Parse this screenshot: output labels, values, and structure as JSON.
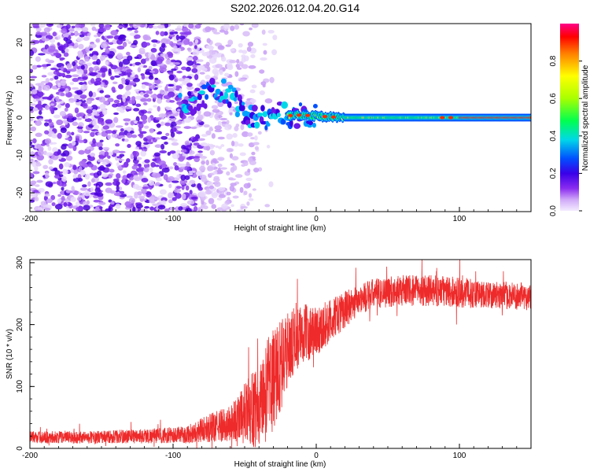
{
  "title": "S202.2026.012.04.20.G14",
  "chart_data": [
    {
      "type": "heatmap",
      "name": "spectrogram",
      "xlabel": "Height of straight line (km)",
      "ylabel": "Frequency (Hz)",
      "xlim": [
        -200,
        150
      ],
      "ylim": [
        -25,
        25
      ],
      "xticks": [
        "-200",
        "-100",
        "0",
        "100"
      ],
      "xtick_values": [
        -200,
        -100,
        0,
        100
      ],
      "yticks": [
        "20",
        "10",
        "0",
        "-10",
        "-20"
      ],
      "ytick_values": [
        20,
        10,
        0,
        -10,
        -20
      ],
      "colorbar": {
        "label": "Normalized spectral amplitude",
        "range": [
          0,
          1
        ],
        "ticks": [
          "0.0",
          "0.2",
          "0.4",
          "0.6",
          "0.8"
        ],
        "tick_values": [
          0.0,
          0.2,
          0.4,
          0.6,
          0.8
        ],
        "colors": [
          "#ffffff",
          "#d8b8f8",
          "#9030f0",
          "#4000e0",
          "#0050ff",
          "#00e0e0",
          "#00ff40",
          "#a0ff00",
          "#ffff00",
          "#ff8000",
          "#ff0000",
          "#ff0080"
        ]
      },
      "features": {
        "noise_region_km": [
          -200,
          -80
        ],
        "signal_track": [
          {
            "x": -95,
            "f": 3
          },
          {
            "x": -80,
            "f": 5
          },
          {
            "x": -70,
            "f": 8
          },
          {
            "x": -60,
            "f": 6
          },
          {
            "x": -50,
            "f": 1
          },
          {
            "x": -40,
            "f": -1
          },
          {
            "x": -30,
            "f": 1
          },
          {
            "x": -20,
            "f": 0.5
          },
          {
            "x": -10,
            "f": 0.7
          },
          {
            "x": 0,
            "f": 0.4
          },
          {
            "x": 10,
            "f": 0.2
          },
          {
            "x": 20,
            "f": 0
          },
          {
            "x": 150,
            "f": 0
          }
        ],
        "stable_track_start_km": 20
      }
    },
    {
      "type": "line",
      "name": "snr",
      "xlabel": "Height of straight line (km)",
      "ylabel": "SNR (10 * v/v)",
      "xlim": [
        -200,
        150
      ],
      "ylim": [
        0,
        305
      ],
      "xticks": [
        "-200",
        "-100",
        "0",
        "100"
      ],
      "xtick_values": [
        -200,
        -100,
        0,
        100
      ],
      "yticks": [
        "300",
        "200",
        "100",
        "0"
      ],
      "ytick_values": [
        300,
        200,
        100,
        0
      ],
      "color": "#ee2a2a",
      "series": [
        {
          "name": "SNR envelope",
          "x": [
            -200,
            -160,
            -120,
            -90,
            -80,
            -60,
            -50,
            -40,
            -30,
            -25,
            -20,
            -10,
            0,
            10,
            20,
            30,
            40,
            60,
            80,
            100,
            120,
            150
          ],
          "mean": [
            18,
            18,
            20,
            22,
            30,
            40,
            55,
            70,
            110,
            130,
            160,
            185,
            190,
            205,
            225,
            240,
            250,
            255,
            255,
            252,
            248,
            245
          ],
          "amplitude": [
            10,
            10,
            12,
            14,
            20,
            30,
            50,
            70,
            90,
            80,
            60,
            50,
            40,
            35,
            30,
            25,
            25,
            25,
            25,
            25,
            22,
            22
          ]
        }
      ]
    }
  ]
}
